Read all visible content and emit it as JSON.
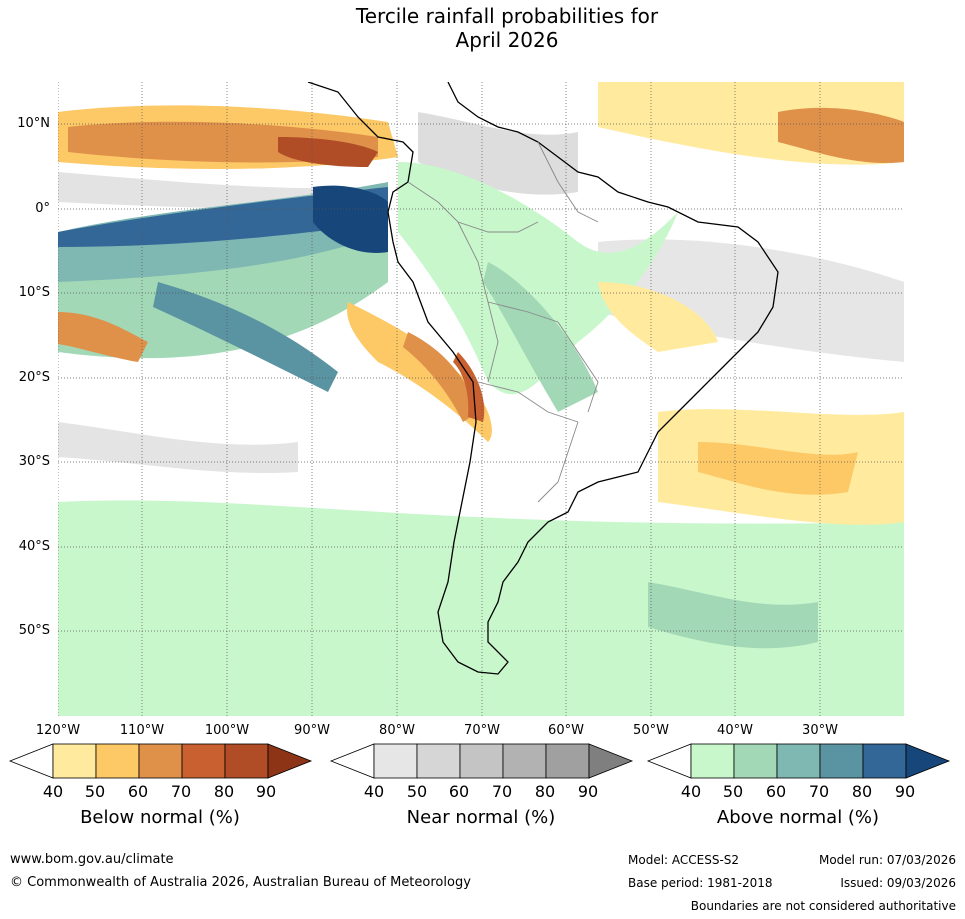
{
  "title": {
    "line1": "Tercile rainfall probabilities for",
    "line2": "April 2026"
  },
  "map": {
    "latitude_labels": [
      "10°N",
      "0°",
      "10°S",
      "20°S",
      "30°S",
      "40°S",
      "50°S"
    ],
    "longitude_labels": [
      "120°W",
      "110°W",
      "100°W",
      "90°W",
      "80°W",
      "70°W",
      "60°W",
      "50°W",
      "40°W",
      "30°W"
    ]
  },
  "legends": [
    {
      "title": "Below normal (%)",
      "ticks": [
        "40",
        "50",
        "60",
        "70",
        "80",
        "90"
      ],
      "colors": [
        "#ffffff",
        "#ffea9e",
        "#fdc866",
        "#df914a",
        "#c8612f",
        "#b04c26",
        "#8e3416"
      ]
    },
    {
      "title": "Near normal (%)",
      "ticks": [
        "40",
        "50",
        "60",
        "70",
        "80",
        "90"
      ],
      "colors": [
        "#ffffff",
        "#e6e6e6",
        "#d6d6d6",
        "#c4c4c4",
        "#b2b2b2",
        "#a0a0a0",
        "#7f7f7f"
      ]
    },
    {
      "title": "Above normal (%)",
      "ticks": [
        "40",
        "50",
        "60",
        "70",
        "80",
        "90"
      ],
      "colors": [
        "#ffffff",
        "#c8f7cc",
        "#a3d8b7",
        "#7fb7b2",
        "#5a93a2",
        "#336797",
        "#17467b"
      ]
    }
  ],
  "footer": {
    "website": "www.bom.gov.au/climate",
    "copyright": "© Commonwealth of Australia 2026, Australian Bureau of Meteorology",
    "model": "Model: ACCESS-S2",
    "base_period": "Base period: 1981-2018",
    "model_run": "Model run: 07/03/2026",
    "issued": "Issued: 09/03/2026",
    "disclaimer": "Boundaries are not considered authoritative"
  }
}
